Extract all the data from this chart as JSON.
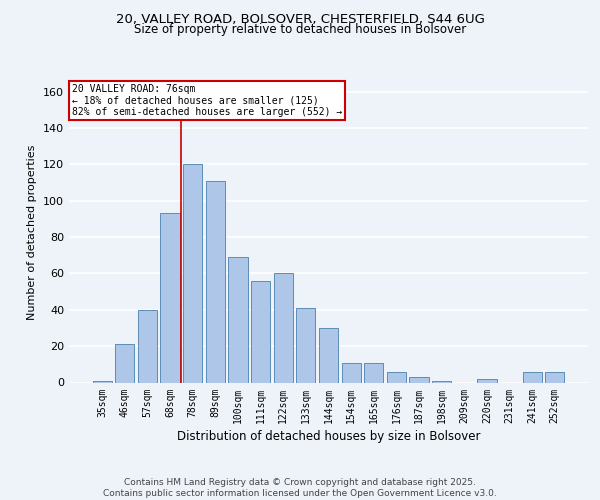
{
  "title1": "20, VALLEY ROAD, BOLSOVER, CHESTERFIELD, S44 6UG",
  "title2": "Size of property relative to detached houses in Bolsover",
  "xlabel": "Distribution of detached houses by size in Bolsover",
  "ylabel": "Number of detached properties",
  "categories": [
    "35sqm",
    "46sqm",
    "57sqm",
    "68sqm",
    "78sqm",
    "89sqm",
    "100sqm",
    "111sqm",
    "122sqm",
    "133sqm",
    "144sqm",
    "154sqm",
    "165sqm",
    "176sqm",
    "187sqm",
    "198sqm",
    "209sqm",
    "220sqm",
    "231sqm",
    "241sqm",
    "252sqm"
  ],
  "values": [
    1,
    21,
    40,
    93,
    120,
    111,
    69,
    56,
    60,
    41,
    30,
    11,
    11,
    6,
    3,
    1,
    0,
    2,
    0,
    6,
    6
  ],
  "bar_color": "#aec6e8",
  "bar_edge_color": "#5b8db8",
  "marker_label": "20 VALLEY ROAD: 76sqm",
  "annotation_line1": "← 18% of detached houses are smaller (125)",
  "annotation_line2": "82% of semi-detached houses are larger (552) →",
  "ref_line_color": "#cc0000",
  "annotation_box_edge": "#cc0000",
  "ylim": [
    0,
    165
  ],
  "yticks": [
    0,
    20,
    40,
    60,
    80,
    100,
    120,
    140,
    160
  ],
  "footer": "Contains HM Land Registry data © Crown copyright and database right 2025.\nContains public sector information licensed under the Open Government Licence v3.0.",
  "background_color": "#eef2f9",
  "grid_color": "#ffffff"
}
